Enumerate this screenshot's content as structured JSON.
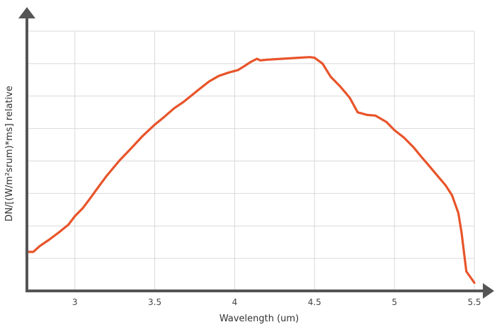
{
  "chart_data": {
    "type": "line",
    "title": "",
    "xlabel": "Wavelength (um)",
    "ylabel": "DN/[(W/m²srum)*ms] relative",
    "xlim": [
      2.7,
      5.5
    ],
    "ylim": [
      0,
      8
    ],
    "xticks": [
      3,
      3.5,
      4,
      4.5,
      5,
      5.5
    ],
    "xtick_labels": [
      "3",
      "3.5",
      "4",
      "4.5",
      "5",
      "5.5"
    ],
    "y_tick_labels_shown": false,
    "grid": true,
    "legend": "none",
    "series": [
      {
        "color": "#e8542a",
        "x": [
          2.7,
          2.74,
          2.78,
          2.84,
          2.9,
          2.96,
          3.0,
          3.05,
          3.1,
          3.15,
          3.2,
          3.28,
          3.35,
          3.42,
          3.5,
          3.56,
          3.62,
          3.68,
          3.72,
          3.78,
          3.84,
          3.9,
          3.96,
          4.02,
          4.06,
          4.1,
          4.14,
          4.16,
          4.2,
          4.3,
          4.4,
          4.47,
          4.5,
          4.55,
          4.6,
          4.66,
          4.72,
          4.77,
          4.83,
          4.88,
          4.95,
          5.0,
          5.06,
          5.12,
          5.17,
          5.2,
          5.26,
          5.32,
          5.36,
          5.4,
          5.42,
          5.45,
          5.5
        ],
        "y": [
          1.2,
          1.2,
          1.38,
          1.58,
          1.8,
          2.04,
          2.3,
          2.55,
          2.88,
          3.22,
          3.55,
          4.02,
          4.38,
          4.75,
          5.12,
          5.36,
          5.62,
          5.82,
          5.98,
          6.22,
          6.45,
          6.62,
          6.72,
          6.8,
          6.92,
          7.05,
          7.15,
          7.1,
          7.12,
          7.15,
          7.18,
          7.2,
          7.18,
          7.0,
          6.6,
          6.3,
          5.95,
          5.5,
          5.42,
          5.4,
          5.2,
          4.95,
          4.72,
          4.42,
          4.12,
          3.95,
          3.6,
          3.25,
          2.95,
          2.4,
          1.8,
          0.6,
          0.25
        ]
      }
    ]
  }
}
